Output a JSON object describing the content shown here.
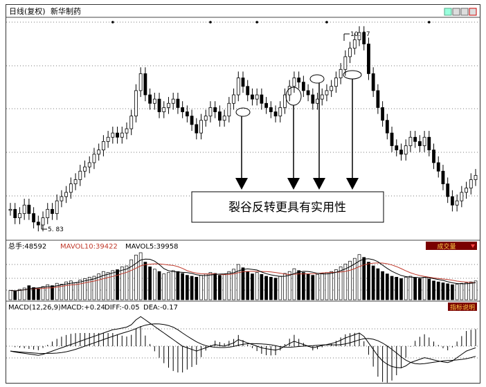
{
  "header": {
    "title": "日线(复权)",
    "stock": "新华制药"
  },
  "price_panel": {
    "high_label": "10. 37",
    "low_label": "5. 83",
    "callout_text": "裂谷反转更具有实用性"
  },
  "volume_panel": {
    "label_total": "总手:",
    "total_value": "48592",
    "ma10_label": "MAVOL10:",
    "ma10_value": "39422",
    "ma5_label": "MAVOL5:",
    "ma5_value": "39958",
    "button_label": "成交量"
  },
  "macd_panel": {
    "params": "MACD(12,26,9)",
    "macd_label": "MACD:",
    "macd_value": "+0.24",
    "diff_label": "DIFF:",
    "diff_value": "-0.05",
    "dea_label": "DEA:",
    "dea_value": "-0.17",
    "button_label": "指标说明"
  },
  "colors": {
    "candle": "#000000",
    "ma10": "#c0392b",
    "ma5": "#000000",
    "panel_button_bg": "#7a0000",
    "panel_button_text": "#ffd24a"
  },
  "chart_data": {
    "type": "line",
    "title": "新华制药",
    "price_extremes": {
      "high": 10.37,
      "low": 5.83
    },
    "price_series": [
      6.2,
      6.0,
      6.1,
      6.3,
      6.1,
      5.9,
      5.83,
      6.0,
      6.2,
      6.1,
      6.4,
      6.5,
      6.6,
      6.8,
      6.9,
      7.1,
      7.2,
      7.3,
      7.5,
      7.6,
      7.8,
      7.9,
      8.0,
      7.9,
      8.0,
      8.1,
      8.4,
      9.0,
      9.4,
      8.9,
      8.7,
      8.8,
      8.5,
      8.6,
      8.7,
      8.8,
      8.6,
      8.5,
      8.4,
      8.2,
      8.0,
      8.3,
      8.4,
      8.6,
      8.5,
      8.3,
      8.4,
      8.7,
      8.9,
      9.3,
      9.1,
      8.9,
      8.8,
      8.9,
      8.7,
      8.6,
      8.5,
      8.4,
      8.6,
      8.9,
      9.1,
      9.3,
      9.2,
      9.0,
      8.9,
      8.7,
      8.8,
      8.9,
      9.0,
      9.1,
      9.3,
      9.5,
      9.8,
      10.0,
      10.2,
      10.37,
      10.1,
      9.4,
      9.0,
      8.6,
      8.3,
      8.0,
      7.7,
      7.6,
      7.5,
      7.7,
      7.9,
      7.8,
      7.7,
      7.9,
      7.6,
      7.3,
      7.1,
      6.8,
      6.5,
      6.3,
      6.4,
      6.6,
      6.7,
      6.9,
      7.0
    ],
    "volume_series": [
      20,
      18,
      22,
      25,
      30,
      26,
      24,
      28,
      32,
      30,
      35,
      33,
      38,
      40,
      36,
      42,
      45,
      48,
      50,
      55,
      60,
      58,
      62,
      64,
      70,
      72,
      85,
      95,
      100,
      80,
      70,
      65,
      60,
      55,
      58,
      62,
      60,
      56,
      52,
      50,
      48,
      52,
      55,
      58,
      56,
      52,
      54,
      60,
      65,
      75,
      68,
      60,
      55,
      58,
      54,
      50,
      48,
      46,
      50,
      56,
      60,
      66,
      62,
      58,
      55,
      52,
      54,
      56,
      58,
      60,
      64,
      70,
      76,
      82,
      88,
      96,
      90,
      80,
      72,
      66,
      60,
      55,
      50,
      48,
      45,
      48,
      50,
      47,
      45,
      48,
      44,
      40,
      38,
      36,
      34,
      32,
      33,
      35,
      36,
      38,
      40
    ],
    "macd_series": [
      -0.15,
      -0.18,
      -0.2,
      -0.22,
      -0.24,
      -0.26,
      -0.28,
      -0.25,
      -0.2,
      -0.15,
      -0.1,
      -0.05,
      0.0,
      0.05,
      0.1,
      0.15,
      0.2,
      0.25,
      0.3,
      0.35,
      0.4,
      0.45,
      0.5,
      0.52,
      0.55,
      0.58,
      0.65,
      0.8,
      0.9,
      0.8,
      0.7,
      0.6,
      0.5,
      0.4,
      0.3,
      0.2,
      0.1,
      0.0,
      -0.05,
      -0.1,
      -0.15,
      -0.1,
      -0.05,
      0.0,
      0.05,
      0.02,
      0.0,
      0.05,
      0.1,
      0.2,
      0.15,
      0.1,
      0.05,
      0.0,
      -0.05,
      -0.08,
      -0.1,
      -0.12,
      -0.08,
      0.0,
      0.08,
      0.15,
      0.1,
      0.05,
      0.0,
      -0.05,
      -0.02,
      0.02,
      0.05,
      0.08,
      0.12,
      0.18,
      0.25,
      0.3,
      0.35,
      0.4,
      0.3,
      0.1,
      -0.1,
      -0.3,
      -0.45,
      -0.55,
      -0.62,
      -0.65,
      -0.66,
      -0.6,
      -0.5,
      -0.45,
      -0.4,
      -0.35,
      -0.38,
      -0.42,
      -0.45,
      -0.48,
      -0.5,
      -0.45,
      -0.35,
      -0.25,
      -0.15,
      -0.1,
      -0.05
    ]
  }
}
